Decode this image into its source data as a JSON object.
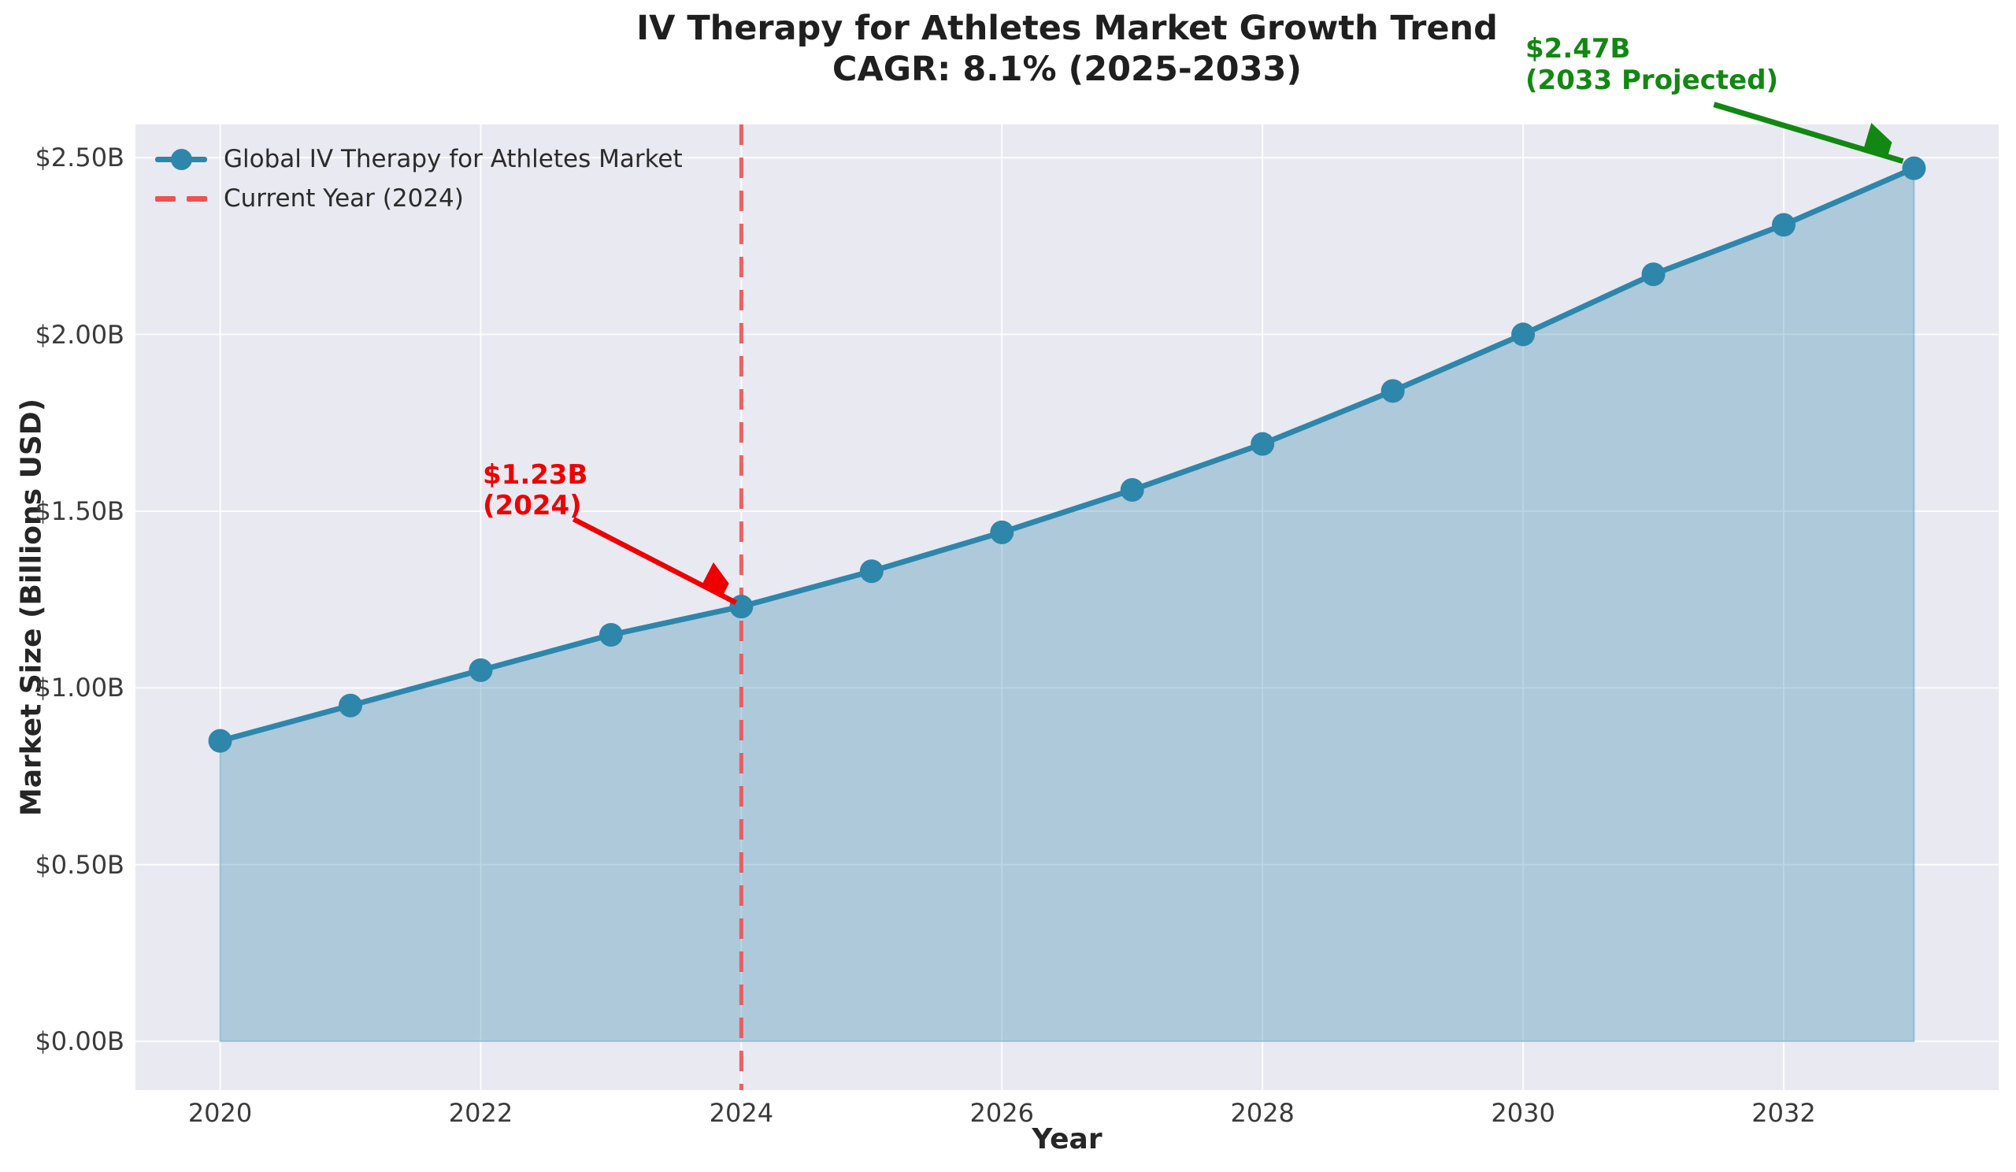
{
  "title": {
    "line1": "IV Therapy for Athletes Market Growth Trend",
    "line2": "CAGR: 8.1% (2025-2033)"
  },
  "axes": {
    "x_label": "Year",
    "y_label": "Market Size (Billions USD)",
    "x_tick_labels": [
      "2020",
      "2022",
      "2024",
      "2026",
      "2028",
      "2030",
      "2032"
    ],
    "y_tick_labels": [
      "$0.00B",
      "$0.50B",
      "$1.00B",
      "$1.50B",
      "$2.00B",
      "$2.50B"
    ]
  },
  "legend": {
    "items": [
      {
        "label": "Global IV Therapy for Athletes Market",
        "type": "line-marker",
        "color": "#2E86AB"
      },
      {
        "label": "Current Year (2024)",
        "type": "dashed-line",
        "color": "#F15050"
      }
    ]
  },
  "annotations": {
    "current": {
      "line1": "$1.23B",
      "line2": "(2024)",
      "year": 2024,
      "value": 1.23,
      "color": "#EE0000"
    },
    "projected": {
      "line1": "$2.47B",
      "line2": "(2033 Projected)",
      "year": 2033,
      "value": 2.47,
      "color": "#128812"
    }
  },
  "colors": {
    "line": "#2E86AB",
    "marker": "#2E86AB",
    "area_fill": "rgba(46,134,171,0.32)",
    "area_edge": "rgba(46,134,171,0.35)",
    "plot_background": "#E9E9F1",
    "grid": "#FFFFFF",
    "current_year_line": "#F15050",
    "annotation_red": "#EE0000",
    "annotation_green": "#128812"
  },
  "chart_data": {
    "type": "area",
    "title": "IV Therapy for Athletes Market Growth Trend — CAGR: 8.1% (2025-2033)",
    "xlabel": "Year",
    "ylabel": "Market Size (Billions USD)",
    "x": [
      2020,
      2021,
      2022,
      2023,
      2024,
      2025,
      2026,
      2027,
      2028,
      2029,
      2030,
      2031,
      2032,
      2033
    ],
    "series": [
      {
        "name": "Global IV Therapy for Athletes Market",
        "values": [
          0.85,
          0.95,
          1.05,
          1.15,
          1.23,
          1.33,
          1.44,
          1.56,
          1.69,
          1.84,
          2.0,
          2.17,
          2.31,
          2.47
        ]
      }
    ],
    "units": "Billions USD",
    "xticks": [
      2020,
      2022,
      2024,
      2026,
      2028,
      2030,
      2032
    ],
    "yticks": [
      0,
      0.5,
      1.0,
      1.5,
      2.0,
      2.5
    ],
    "xlim": [
      2019.35,
      2033.65
    ],
    "ylim": [
      -0.138,
      2.594
    ],
    "grid": true,
    "legend_position": "upper-left",
    "vline": {
      "x": 2024,
      "label": "Current Year (2024)",
      "style": "dashed"
    },
    "annotated_points": [
      {
        "year": 2024,
        "value": 1.23,
        "label": "$1.23B (2024)"
      },
      {
        "year": 2033,
        "value": 2.47,
        "label": "$2.47B (2033 Projected)"
      }
    ]
  }
}
